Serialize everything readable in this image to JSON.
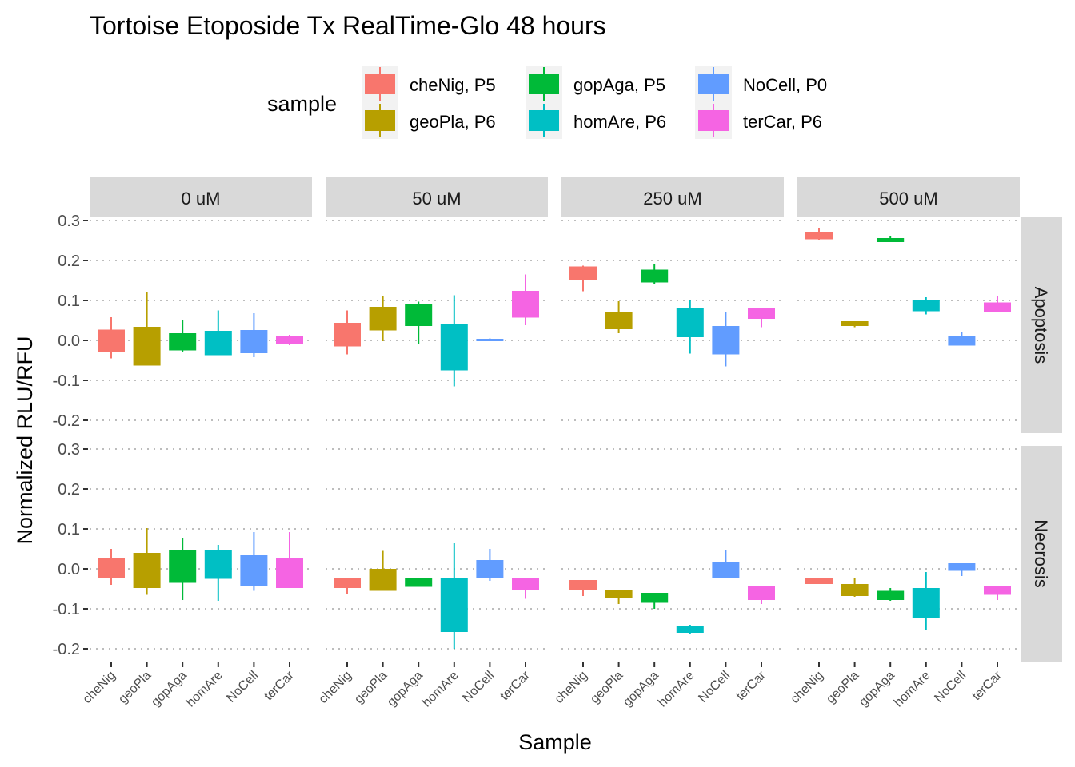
{
  "chart_data": {
    "type": "box",
    "title": "Tortoise Etoposide Tx RealTime-Glo 48 hours",
    "xlabel": "Sample",
    "ylabel": "Normalized RLU/RFU",
    "ylim": [
      -0.22,
      0.3
    ],
    "yticks": [
      0.3,
      0.2,
      0.1,
      0.0,
      -0.1,
      -0.2
    ],
    "ytick_labels": [
      "0.3",
      "0.2",
      "0.1",
      "0.0",
      "-0.1",
      "-0.2"
    ],
    "grid": "major-dotted",
    "categories": [
      "cheNig",
      "geoPla",
      "gopAga",
      "homAre",
      "NoCell",
      "terCar"
    ],
    "facet_cols": [
      "0 uM",
      "50 uM",
      "250 uM",
      "500 uM"
    ],
    "facet_rows": [
      "Apoptosis",
      "Necrosis"
    ],
    "legend": {
      "title": "sample",
      "position": "top",
      "entries": [
        {
          "label": "cheNig, P5",
          "color": "#F8766D"
        },
        {
          "label": "geoPla, P6",
          "color": "#B79F00"
        },
        {
          "label": "gopAga, P5",
          "color": "#00BA38"
        },
        {
          "label": "homAre, P6",
          "color": "#00BFC4"
        },
        {
          "label": "NoCell, P0",
          "color": "#619CFF"
        },
        {
          "label": "terCar, P6",
          "color": "#F564E3"
        }
      ]
    },
    "boxes_note": "each box: [whisker_low, box_low, box_high, whisker_high] per category",
    "panels": [
      {
        "row": "Apoptosis",
        "col": "0 uM",
        "boxes": [
          [
            -0.045,
            -0.028,
            0.027,
            0.058
          ],
          [
            -0.063,
            -0.063,
            0.034,
            0.122
          ],
          [
            -0.028,
            -0.025,
            0.018,
            0.05
          ],
          [
            -0.037,
            -0.037,
            0.024,
            0.075
          ],
          [
            -0.042,
            -0.032,
            0.026,
            0.068
          ],
          [
            -0.012,
            -0.008,
            0.01,
            0.014
          ]
        ]
      },
      {
        "row": "Apoptosis",
        "col": "50 uM",
        "boxes": [
          [
            -0.035,
            -0.015,
            0.044,
            0.075
          ],
          [
            -0.002,
            0.025,
            0.084,
            0.11
          ],
          [
            -0.01,
            0.036,
            0.092,
            0.097
          ],
          [
            -0.115,
            -0.075,
            0.042,
            0.113
          ],
          [
            -0.002,
            -0.002,
            0.004,
            0.005
          ],
          [
            0.038,
            0.057,
            0.124,
            0.165
          ]
        ]
      },
      {
        "row": "Apoptosis",
        "col": "250 uM",
        "boxes": [
          [
            0.123,
            0.152,
            0.185,
            0.187
          ],
          [
            0.018,
            0.028,
            0.072,
            0.098
          ],
          [
            0.14,
            0.145,
            0.177,
            0.19
          ],
          [
            -0.033,
            0.008,
            0.08,
            0.1
          ],
          [
            -0.065,
            -0.035,
            0.036,
            0.07
          ],
          [
            0.033,
            0.054,
            0.08,
            0.08
          ]
        ]
      },
      {
        "row": "Apoptosis",
        "col": "500 uM",
        "boxes": [
          [
            0.25,
            0.253,
            0.272,
            0.282
          ],
          [
            0.033,
            0.036,
            0.048,
            0.048
          ],
          [
            0.246,
            0.246,
            0.256,
            0.26
          ],
          [
            0.065,
            0.073,
            0.1,
            0.108
          ],
          [
            -0.013,
            -0.013,
            0.01,
            0.02
          ],
          [
            0.07,
            0.07,
            0.095,
            0.11
          ]
        ]
      },
      {
        "row": "Necrosis",
        "col": "0 uM",
        "boxes": [
          [
            -0.04,
            -0.022,
            0.028,
            0.05
          ],
          [
            -0.065,
            -0.048,
            0.04,
            0.102
          ],
          [
            -0.078,
            -0.035,
            0.046,
            0.078
          ],
          [
            -0.08,
            -0.025,
            0.046,
            0.06
          ],
          [
            -0.055,
            -0.042,
            0.034,
            0.092
          ],
          [
            -0.048,
            -0.048,
            0.028,
            0.092
          ]
        ]
      },
      {
        "row": "Necrosis",
        "col": "50 uM",
        "boxes": [
          [
            -0.063,
            -0.048,
            -0.022,
            -0.022
          ],
          [
            -0.055,
            -0.055,
            0.0,
            0.045
          ],
          [
            -0.045,
            -0.045,
            -0.022,
            -0.022
          ],
          [
            -0.2,
            -0.158,
            -0.022,
            0.064
          ],
          [
            -0.03,
            -0.022,
            0.022,
            0.05
          ],
          [
            -0.075,
            -0.052,
            -0.022,
            -0.022
          ]
        ]
      },
      {
        "row": "Necrosis",
        "col": "250 uM",
        "boxes": [
          [
            -0.068,
            -0.052,
            -0.028,
            -0.028
          ],
          [
            -0.088,
            -0.072,
            -0.052,
            -0.052
          ],
          [
            -0.1,
            -0.085,
            -0.06,
            -0.06
          ],
          [
            -0.163,
            -0.16,
            -0.142,
            -0.14
          ],
          [
            -0.022,
            -0.022,
            0.016,
            0.046
          ],
          [
            -0.088,
            -0.078,
            -0.042,
            -0.042
          ]
        ]
      },
      {
        "row": "Necrosis",
        "col": "500 uM",
        "boxes": [
          [
            -0.038,
            -0.038,
            -0.022,
            -0.022
          ],
          [
            -0.07,
            -0.068,
            -0.038,
            -0.022
          ],
          [
            -0.08,
            -0.078,
            -0.055,
            -0.048
          ],
          [
            -0.152,
            -0.122,
            -0.048,
            -0.008
          ],
          [
            -0.018,
            -0.005,
            0.014,
            0.014
          ],
          [
            -0.078,
            -0.065,
            -0.042,
            -0.042
          ]
        ]
      }
    ]
  }
}
